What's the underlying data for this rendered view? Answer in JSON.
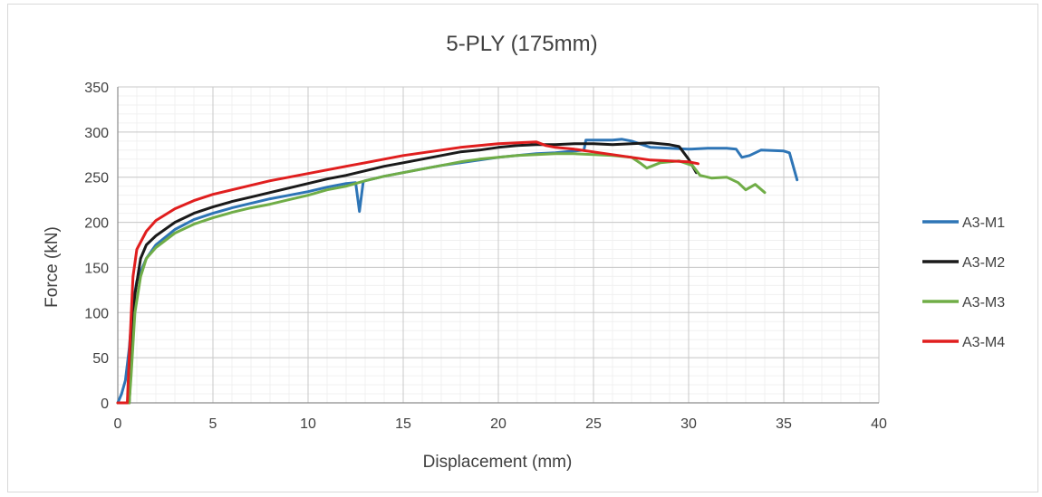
{
  "chart_data": {
    "type": "line",
    "title": "5-PLY (175mm)",
    "xlabel": "Displacement (mm)",
    "ylabel": "Force (kN)",
    "xlim": [
      0,
      40
    ],
    "ylim": [
      0,
      350
    ],
    "xticks": [
      0,
      5,
      10,
      15,
      20,
      25,
      30,
      35,
      40
    ],
    "yticks": [
      0,
      50,
      100,
      150,
      200,
      250,
      300,
      350
    ],
    "grid": true,
    "legend": "right",
    "series": [
      {
        "name": "A3-M1",
        "color": "#2e75b6",
        "points": [
          [
            0,
            0
          ],
          [
            0.2,
            10
          ],
          [
            0.4,
            25
          ],
          [
            0.6,
            60
          ],
          [
            0.8,
            110
          ],
          [
            1.0,
            135
          ],
          [
            1.5,
            160
          ],
          [
            2,
            175
          ],
          [
            3,
            192
          ],
          [
            4,
            203
          ],
          [
            5,
            210
          ],
          [
            6,
            216
          ],
          [
            7,
            221
          ],
          [
            8,
            226
          ],
          [
            9,
            230
          ],
          [
            10,
            234
          ],
          [
            11,
            239
          ],
          [
            12,
            243
          ],
          [
            12.5,
            244
          ],
          [
            12.7,
            212
          ],
          [
            12.9,
            245
          ],
          [
            13,
            246
          ],
          [
            14,
            251
          ],
          [
            15,
            255
          ],
          [
            16,
            259
          ],
          [
            17,
            263
          ],
          [
            18,
            266
          ],
          [
            19,
            269
          ],
          [
            20,
            272
          ],
          [
            21,
            274
          ],
          [
            22,
            276
          ],
          [
            23,
            277
          ],
          [
            24,
            279
          ],
          [
            24.5,
            280
          ],
          [
            24.6,
            291
          ],
          [
            26,
            291
          ],
          [
            26.5,
            292
          ],
          [
            27,
            290
          ],
          [
            28,
            283
          ],
          [
            29,
            282
          ],
          [
            30,
            281
          ],
          [
            31,
            282
          ],
          [
            32,
            282
          ],
          [
            32.5,
            281
          ],
          [
            32.8,
            272
          ],
          [
            33.2,
            274
          ],
          [
            33.8,
            280
          ],
          [
            35,
            279
          ],
          [
            35.3,
            277
          ],
          [
            35.7,
            247
          ]
        ]
      },
      {
        "name": "A3-M2",
        "color": "#1a1a1a",
        "points": [
          [
            0,
            0
          ],
          [
            0.6,
            0
          ],
          [
            0.7,
            40
          ],
          [
            0.9,
            120
          ],
          [
            1.2,
            160
          ],
          [
            1.5,
            175
          ],
          [
            2,
            185
          ],
          [
            3,
            200
          ],
          [
            4,
            210
          ],
          [
            5,
            217
          ],
          [
            6,
            223
          ],
          [
            7,
            228
          ],
          [
            8,
            233
          ],
          [
            9,
            238
          ],
          [
            10,
            243
          ],
          [
            11,
            248
          ],
          [
            12,
            252
          ],
          [
            13,
            257
          ],
          [
            14,
            262
          ],
          [
            15,
            266
          ],
          [
            16,
            270
          ],
          [
            17,
            274
          ],
          [
            18,
            278
          ],
          [
            19,
            280
          ],
          [
            20,
            283
          ],
          [
            21,
            285
          ],
          [
            22,
            286
          ],
          [
            23,
            286
          ],
          [
            24,
            287
          ],
          [
            25,
            287
          ],
          [
            26,
            286
          ],
          [
            27,
            287
          ],
          [
            28,
            288
          ],
          [
            29,
            286
          ],
          [
            29.5,
            284
          ],
          [
            30,
            270
          ],
          [
            30.4,
            255
          ]
        ]
      },
      {
        "name": "A3-M3",
        "color": "#70ad47",
        "points": [
          [
            0,
            0
          ],
          [
            0.6,
            0
          ],
          [
            0.7,
            30
          ],
          [
            0.9,
            100
          ],
          [
            1.2,
            140
          ],
          [
            1.5,
            160
          ],
          [
            2,
            172
          ],
          [
            3,
            188
          ],
          [
            4,
            198
          ],
          [
            5,
            205
          ],
          [
            6,
            211
          ],
          [
            7,
            216
          ],
          [
            8,
            220
          ],
          [
            9,
            225
          ],
          [
            10,
            230
          ],
          [
            11,
            236
          ],
          [
            12,
            240
          ],
          [
            13,
            246
          ],
          [
            14,
            251
          ],
          [
            15,
            255
          ],
          [
            16,
            259
          ],
          [
            17,
            263
          ],
          [
            18,
            267
          ],
          [
            19,
            270
          ],
          [
            20,
            272
          ],
          [
            21,
            274
          ],
          [
            22,
            275
          ],
          [
            23,
            276
          ],
          [
            24,
            276
          ],
          [
            25,
            275
          ],
          [
            26,
            274
          ],
          [
            27,
            272
          ],
          [
            27.5,
            265
          ],
          [
            27.8,
            260
          ],
          [
            28.5,
            266
          ],
          [
            29.5,
            268
          ],
          [
            30.2,
            263
          ],
          [
            30.6,
            252
          ],
          [
            31.2,
            249
          ],
          [
            32,
            250
          ],
          [
            32.6,
            244
          ],
          [
            33,
            236
          ],
          [
            33.5,
            242
          ],
          [
            34,
            233
          ]
        ]
      },
      {
        "name": "A3-M4",
        "color": "#e01e1e",
        "points": [
          [
            0,
            0
          ],
          [
            0.5,
            0
          ],
          [
            0.6,
            50
          ],
          [
            0.8,
            140
          ],
          [
            1.0,
            170
          ],
          [
            1.5,
            190
          ],
          [
            2,
            202
          ],
          [
            3,
            215
          ],
          [
            4,
            224
          ],
          [
            5,
            231
          ],
          [
            6,
            236
          ],
          [
            7,
            241
          ],
          [
            8,
            246
          ],
          [
            9,
            250
          ],
          [
            10,
            254
          ],
          [
            11,
            258
          ],
          [
            12,
            262
          ],
          [
            13,
            266
          ],
          [
            14,
            270
          ],
          [
            15,
            274
          ],
          [
            16,
            277
          ],
          [
            17,
            280
          ],
          [
            18,
            283
          ],
          [
            19,
            285
          ],
          [
            20,
            287
          ],
          [
            21,
            288
          ],
          [
            22,
            289
          ],
          [
            22.5,
            285
          ],
          [
            23,
            283
          ],
          [
            24,
            281
          ],
          [
            25,
            278
          ],
          [
            26,
            275
          ],
          [
            27,
            272
          ],
          [
            28,
            269
          ],
          [
            29,
            268
          ],
          [
            30,
            267
          ],
          [
            30.5,
            265
          ]
        ]
      }
    ]
  }
}
